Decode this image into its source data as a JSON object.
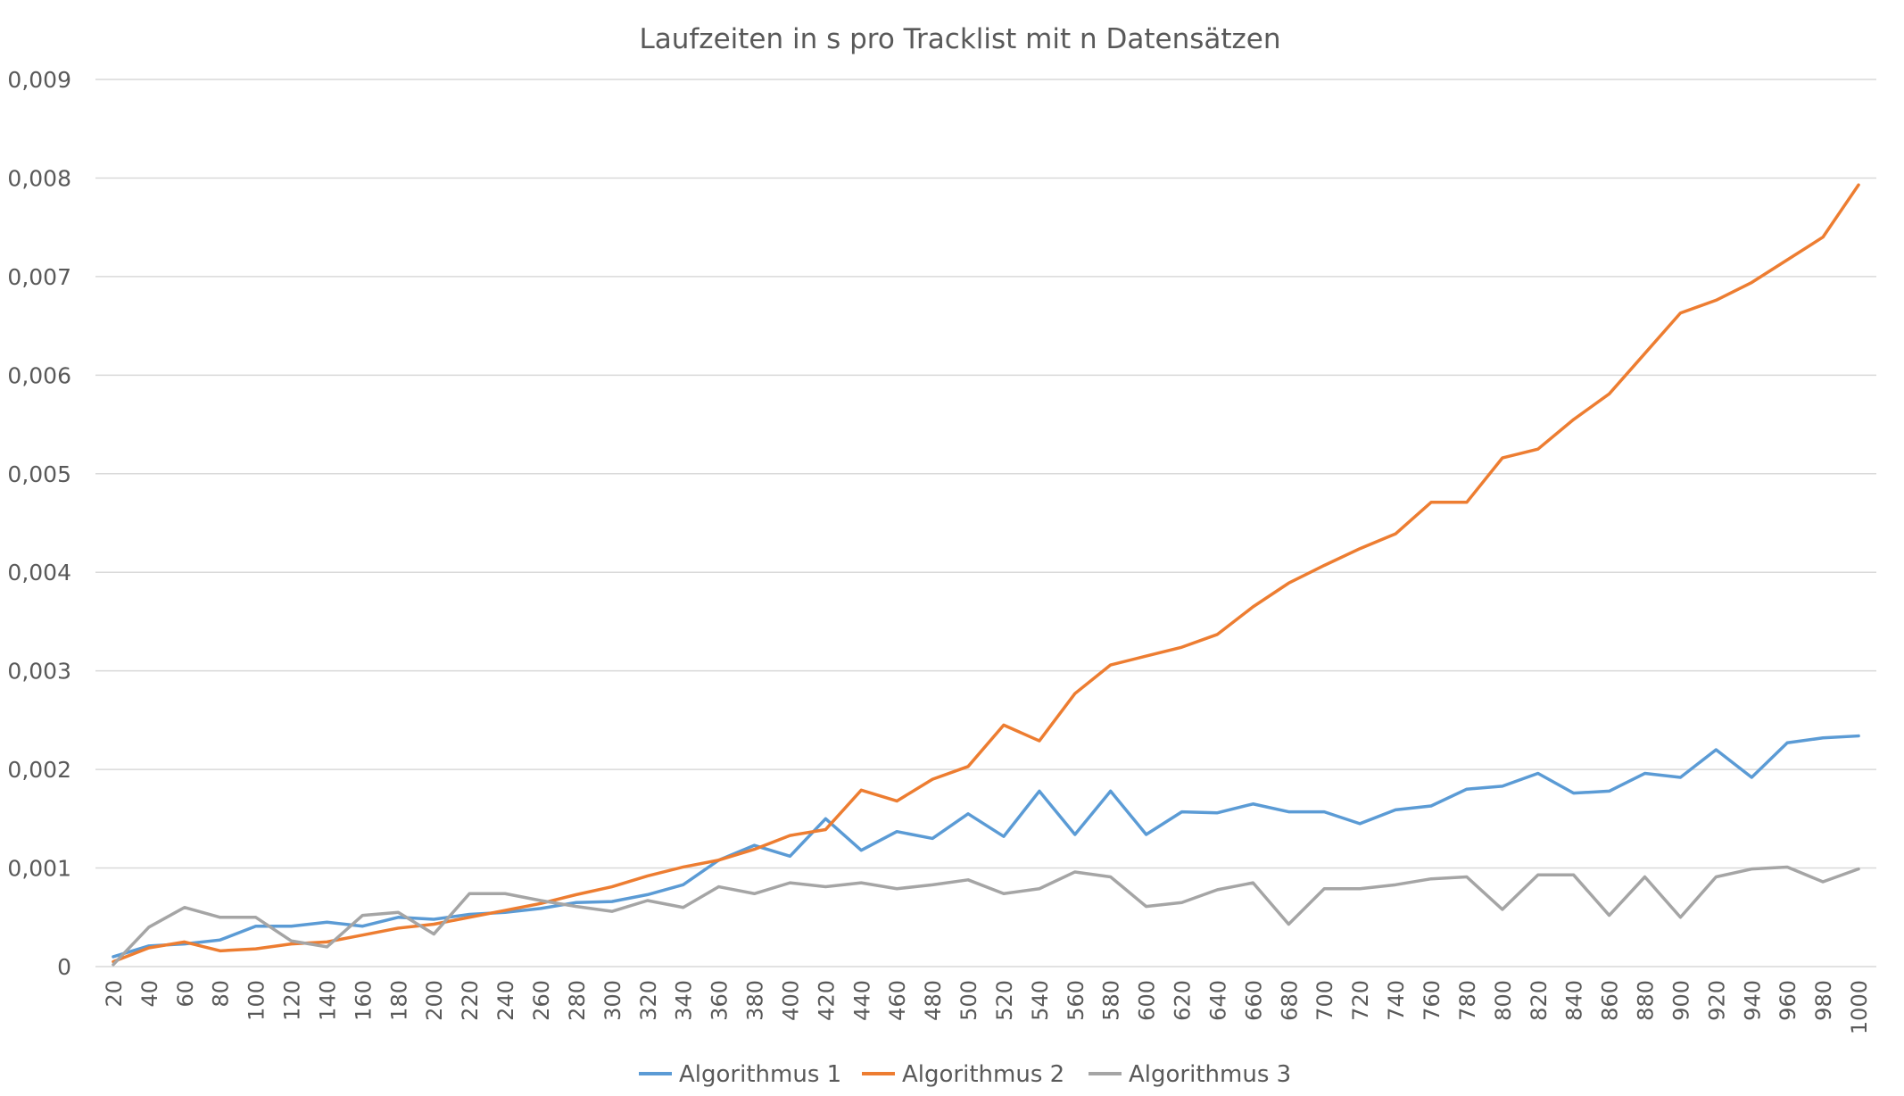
{
  "chart_data": {
    "type": "line",
    "title": "Laufzeiten in s pro Tracklist mit n Datensätzen",
    "xlabel": "",
    "ylabel": "",
    "ylim": [
      0,
      0.009
    ],
    "yticks": [
      "0",
      "0,001",
      "0,002",
      "0,003",
      "0,004",
      "0,005",
      "0,006",
      "0,007",
      "0,008",
      "0,009"
    ],
    "grid": true,
    "legend": "bottom",
    "categories": [
      "20",
      "40",
      "60",
      "80",
      "100",
      "120",
      "140",
      "160",
      "180",
      "200",
      "220",
      "240",
      "260",
      "280",
      "300",
      "320",
      "340",
      "360",
      "380",
      "400",
      "420",
      "440",
      "460",
      "480",
      "500",
      "520",
      "540",
      "560",
      "580",
      "600",
      "620",
      "640",
      "660",
      "680",
      "700",
      "720",
      "740",
      "760",
      "780",
      "800",
      "820",
      "840",
      "860",
      "880",
      "900",
      "920",
      "940",
      "960",
      "980",
      "1000"
    ],
    "series": [
      {
        "name": "Algorithmus 1",
        "color": "#5b9bd5",
        "values": [
          0.0001,
          0.00021,
          0.00023,
          0.00027,
          0.00041,
          0.00041,
          0.00045,
          0.00041,
          0.0005,
          0.00048,
          0.00053,
          0.00055,
          0.00059,
          0.00065,
          0.00066,
          0.00073,
          0.00083,
          0.00108,
          0.00123,
          0.00112,
          0.0015,
          0.00118,
          0.00137,
          0.0013,
          0.00155,
          0.00132,
          0.00178,
          0.00134,
          0.00178,
          0.00134,
          0.00157,
          0.00156,
          0.00165,
          0.00157,
          0.00157,
          0.00145,
          0.00159,
          0.00163,
          0.0018,
          0.00183,
          0.00196,
          0.00176,
          0.00178,
          0.00196,
          0.00192,
          0.0022,
          0.00192,
          0.00227,
          0.00232,
          0.00234
        ]
      },
      {
        "name": "Algorithmus 2",
        "color": "#ed7d31",
        "values": [
          5e-05,
          0.00019,
          0.00025,
          0.00016,
          0.00018,
          0.00023,
          0.00025,
          0.00032,
          0.00039,
          0.00043,
          0.0005,
          0.00057,
          0.00064,
          0.00073,
          0.00081,
          0.00092,
          0.00101,
          0.00108,
          0.00119,
          0.00133,
          0.00139,
          0.00179,
          0.00168,
          0.0019,
          0.00203,
          0.00245,
          0.00229,
          0.00277,
          0.00306,
          0.00315,
          0.00324,
          0.00337,
          0.00365,
          0.00389,
          0.00407,
          0.00424,
          0.00439,
          0.00471,
          0.00471,
          0.00516,
          0.00525,
          0.00555,
          0.00581,
          0.00622,
          0.00663,
          0.00676,
          0.00694,
          0.00717,
          0.0074,
          0.00793
        ]
      },
      {
        "name": "Algorithmus 3",
        "color": "#a5a5a5",
        "values": [
          2e-05,
          0.0004,
          0.0006,
          0.0005,
          0.0005,
          0.00026,
          0.0002,
          0.00052,
          0.00055,
          0.00033,
          0.00074,
          0.00074,
          0.00067,
          0.00061,
          0.00056,
          0.00067,
          0.0006,
          0.00081,
          0.00074,
          0.00085,
          0.00081,
          0.00085,
          0.00079,
          0.00083,
          0.00088,
          0.00074,
          0.00079,
          0.00096,
          0.00091,
          0.00061,
          0.00065,
          0.00078,
          0.00085,
          0.00043,
          0.00079,
          0.00079,
          0.00083,
          0.00089,
          0.00091,
          0.00058,
          0.00093,
          0.00093,
          0.00052,
          0.00091,
          0.0005,
          0.00091,
          0.00099,
          0.00101,
          0.00086,
          0.00099
        ]
      }
    ]
  }
}
